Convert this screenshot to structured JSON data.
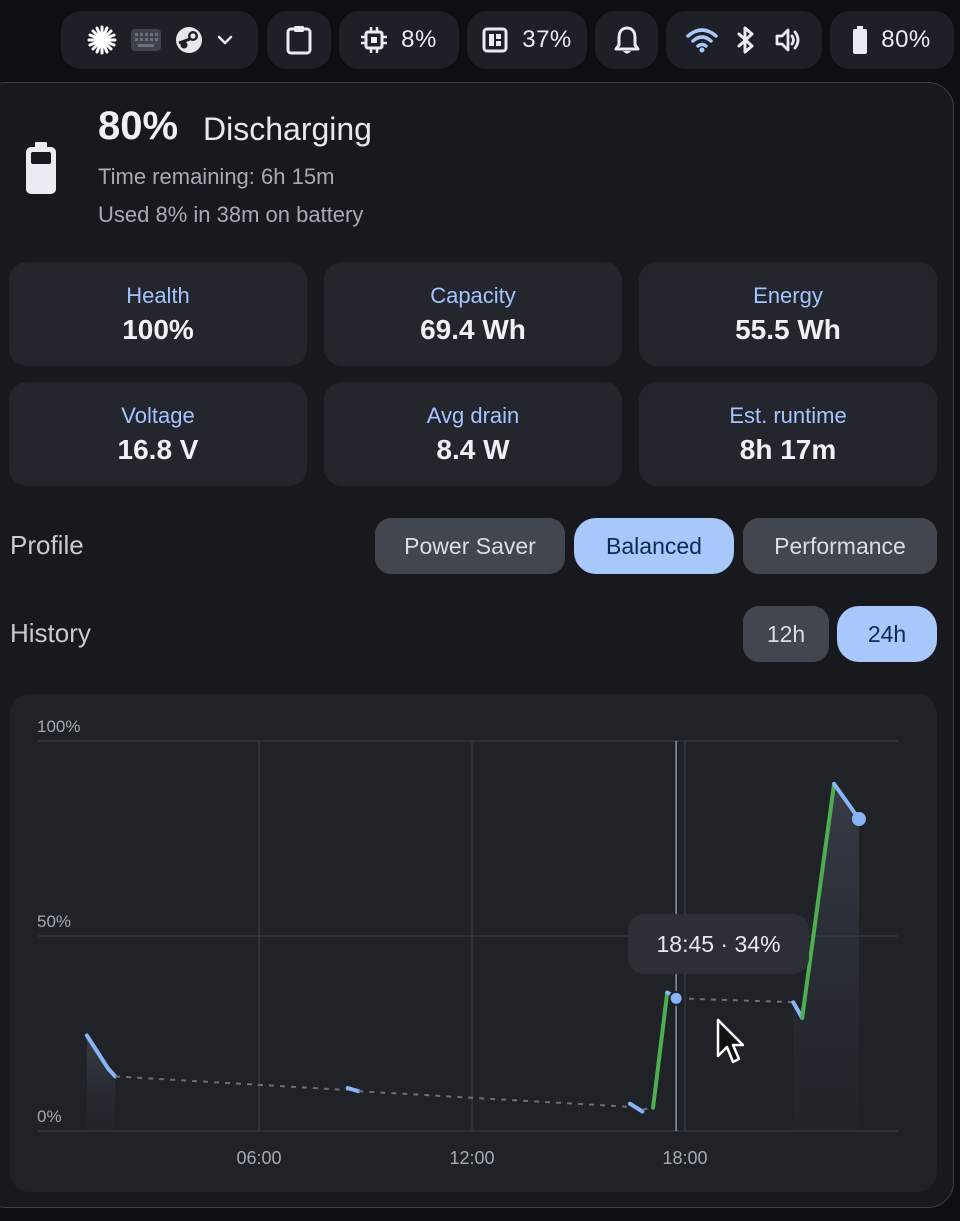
{
  "topbar": {
    "cpu": "8%",
    "memory": "37%",
    "battery": "80%",
    "icons": [
      "asterisk-icon",
      "keyboard-icon",
      "steam-icon",
      "chevron-down-icon",
      "clipboard-icon",
      "cpu-chip-icon",
      "memory-icon",
      "bell-icon",
      "wifi-icon",
      "bluetooth-icon",
      "volume-icon",
      "battery-icon"
    ]
  },
  "battery": {
    "percent": "80%",
    "state": "Discharging",
    "time_remaining": "Time remaining: 6h 15m",
    "usage": "Used 8% in 38m on battery",
    "level": 0.8
  },
  "stats": [
    {
      "label": "Health",
      "value": "100%"
    },
    {
      "label": "Capacity",
      "value": "69.4 Wh"
    },
    {
      "label": "Energy",
      "value": "55.5 Wh"
    },
    {
      "label": "Voltage",
      "value": "16.8 V"
    },
    {
      "label": "Avg drain",
      "value": "8.4 W"
    },
    {
      "label": "Est. runtime",
      "value": "8h 17m"
    }
  ],
  "profile": {
    "label": "Profile",
    "options": [
      "Power Saver",
      "Balanced",
      "Performance"
    ],
    "selected": "Balanced"
  },
  "history": {
    "label": "History",
    "ranges": [
      "12h",
      "24h"
    ],
    "selected": "24h",
    "tooltip": "18:45 · 34%"
  },
  "chart_data": {
    "type": "line",
    "y_ticks": [
      "100%",
      "50%",
      "0%"
    ],
    "x_ticks": [
      "06:00",
      "12:00",
      "18:00"
    ],
    "x_unit": "hours",
    "xlim": [
      0,
      24
    ],
    "ylim": [
      0,
      100
    ],
    "grid": true,
    "colors": {
      "discharging": "#8ab4f8",
      "charging": "#4caf50",
      "gap": "#6b6f78",
      "cursor": "#8a93a8"
    },
    "segments": [
      {
        "kind": "discharging",
        "points": [
          [
            1.15,
            24.5
          ],
          [
            1.75,
            16
          ],
          [
            1.95,
            14
          ]
        ]
      },
      {
        "kind": "gap",
        "points": [
          [
            1.95,
            14
          ],
          [
            8.5,
            10.5
          ]
        ]
      },
      {
        "kind": "discharging",
        "points": [
          [
            8.5,
            11
          ],
          [
            8.8,
            10.2
          ]
        ]
      },
      {
        "kind": "gap",
        "points": [
          [
            8.8,
            10.2
          ],
          [
            16.8,
            6
          ]
        ]
      },
      {
        "kind": "discharging",
        "points": [
          [
            16.45,
            7
          ],
          [
            16.8,
            5
          ]
        ]
      },
      {
        "kind": "gap",
        "points": [
          [
            16.8,
            5.5
          ],
          [
            17.1,
            6
          ]
        ]
      },
      {
        "kind": "charging",
        "points": [
          [
            17.1,
            6
          ],
          [
            17.5,
            35.5
          ]
        ]
      },
      {
        "kind": "discharging",
        "points": [
          [
            17.5,
            35.5
          ],
          [
            17.8,
            34
          ]
        ]
      },
      {
        "kind": "gap",
        "points": [
          [
            17.8,
            34
          ],
          [
            21.2,
            33
          ]
        ]
      },
      {
        "kind": "discharging",
        "points": [
          [
            21.05,
            33
          ],
          [
            21.3,
            29
          ]
        ]
      },
      {
        "kind": "charging",
        "points": [
          [
            21.3,
            29
          ],
          [
            22.2,
            89
          ]
        ]
      },
      {
        "kind": "discharging",
        "points": [
          [
            22.2,
            89
          ],
          [
            22.9,
            80
          ]
        ]
      }
    ],
    "shaded_ranges": [
      [
        1.15,
        1.95
      ],
      [
        21.05,
        22.9
      ]
    ],
    "end_point": [
      22.9,
      80
    ],
    "cursor": {
      "x": 17.75,
      "y": 34
    }
  }
}
